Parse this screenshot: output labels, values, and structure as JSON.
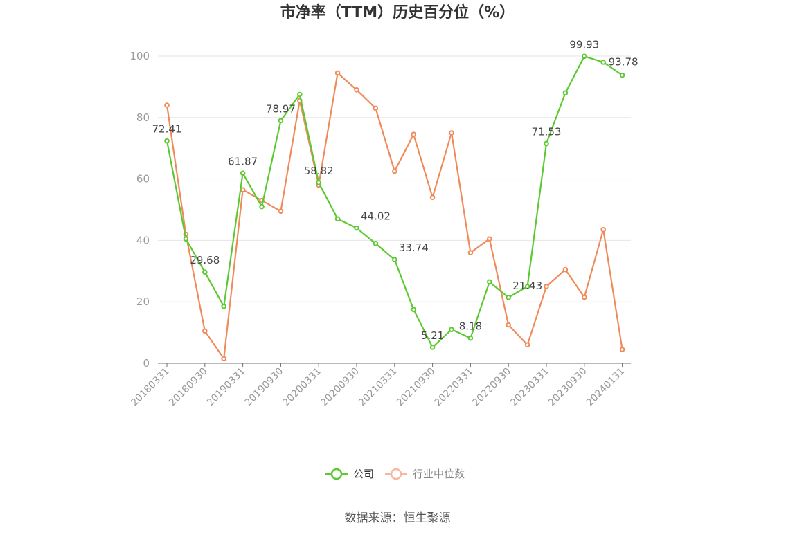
{
  "chart_data": {
    "type": "line",
    "title": "市净率（TTM）历史百分位（%）",
    "xlabel": "",
    "ylabel": "",
    "ylim": [
      0,
      100
    ],
    "yticks": [
      0,
      20,
      40,
      60,
      80,
      100
    ],
    "grid": true,
    "legend_position": "bottom",
    "x": [
      "20180331",
      "20180630",
      "20180930",
      "20181231",
      "20190331",
      "20190630",
      "20190930",
      "20191231",
      "20200331",
      "20200630",
      "20200930",
      "20201231",
      "20210331",
      "20210630",
      "20210930",
      "20211231",
      "20220331",
      "20220630",
      "20220930",
      "20221231",
      "20230331",
      "20230630",
      "20230930",
      "20231231",
      "20240131"
    ],
    "xtick_labels": [
      "20180331",
      "20180930",
      "20190331",
      "20190930",
      "20200331",
      "20200930",
      "20210331",
      "20210930",
      "20220331",
      "20220930",
      "20230331",
      "20230930",
      "20240131"
    ],
    "series": [
      {
        "name": "公司",
        "color": "#5cc932",
        "values": [
          72.41,
          40.5,
          29.68,
          18.5,
          61.87,
          51.0,
          78.97,
          87.5,
          58.82,
          47.0,
          44.02,
          39.0,
          33.74,
          17.5,
          5.21,
          11.0,
          8.18,
          26.5,
          21.43,
          25.0,
          71.53,
          88.0,
          99.93,
          98.0,
          93.78
        ],
        "labels": {
          "0": "72.41",
          "2": "29.68",
          "4": "61.87",
          "6": "78.97",
          "8": "58.82",
          "10": "44.02",
          "12": "33.74",
          "14": "5.21",
          "16": "8.18",
          "18": "21.43",
          "20": "71.53",
          "22": "99.93",
          "24": "93.78"
        }
      },
      {
        "name": "行业中位数",
        "color": "#f08a5a",
        "values": [
          84.0,
          42.0,
          10.5,
          1.5,
          56.5,
          53.0,
          49.5,
          85.5,
          58.0,
          94.5,
          89.0,
          83.0,
          62.5,
          74.5,
          54.0,
          75.0,
          36.0,
          40.5,
          12.5,
          6.0,
          25.0,
          30.5,
          21.5,
          43.5,
          4.5
        ]
      }
    ]
  },
  "source_text": "数据来源：恒生聚源"
}
